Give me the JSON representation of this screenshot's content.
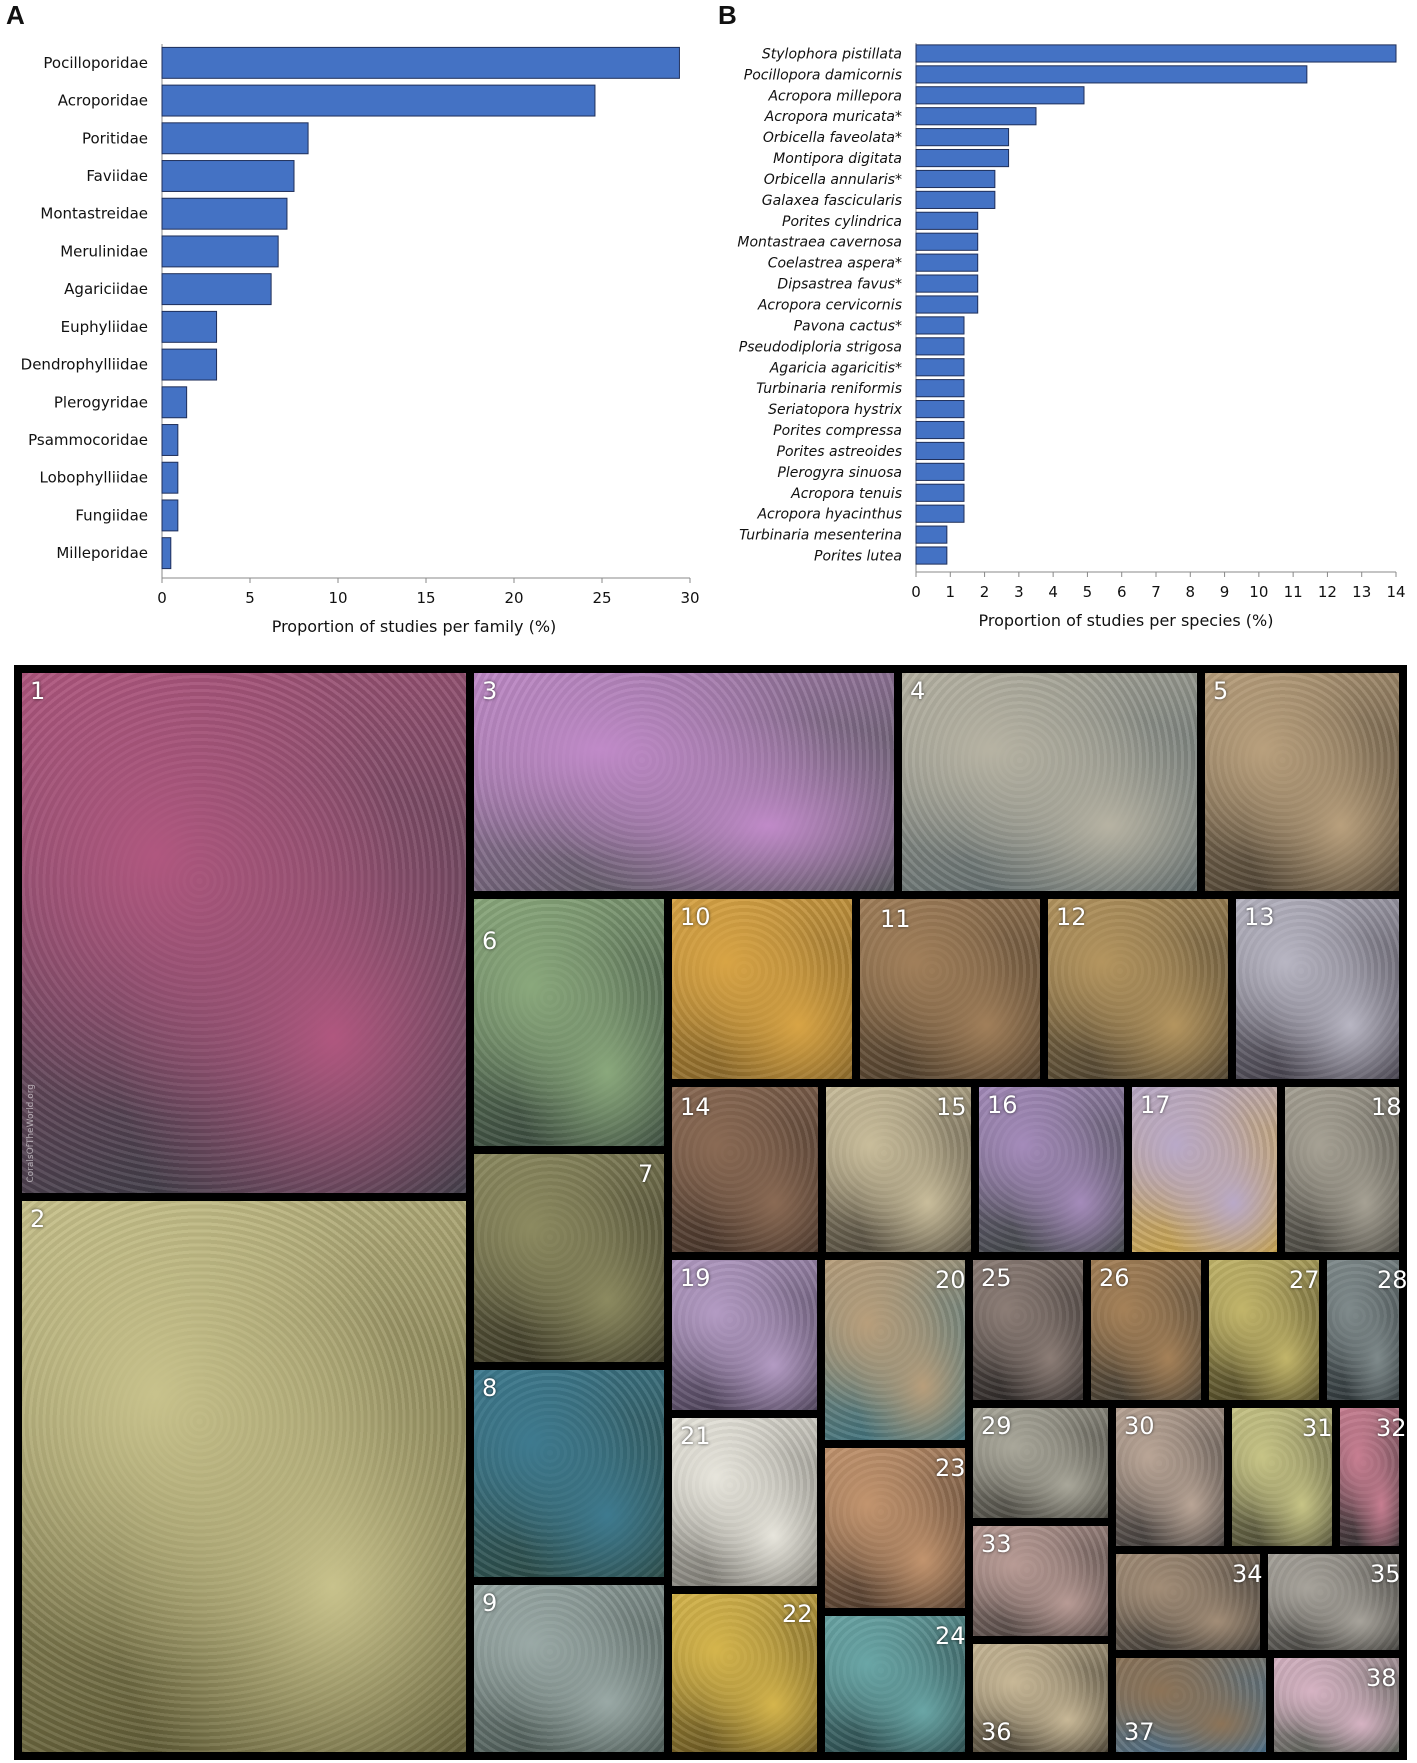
{
  "panels": {
    "a_letter": "A",
    "b_letter": "B"
  },
  "chart_data": [
    {
      "type": "bar",
      "orientation": "horizontal",
      "categories": [
        "Pocilloporidae",
        "Acroporidae",
        "Poritidae",
        "Faviidae",
        "Montastreidae",
        "Merulinidae",
        "Agariciidae",
        "Euphyliidae",
        "Dendrophylliidae",
        "Plerogyridae",
        "Psammocoridae",
        "Lobophylliidae",
        "Fungiidae",
        "Milleporidae"
      ],
      "values": [
        29.4,
        24.6,
        8.3,
        7.5,
        7.1,
        6.6,
        6.2,
        3.1,
        3.1,
        1.4,
        0.9,
        0.9,
        0.9,
        0.5
      ],
      "xlabel": "Proportion of studies per family (%)",
      "xlim": [
        0,
        30
      ],
      "xticks": [
        "0",
        "5",
        "10",
        "15",
        "20",
        "25",
        "30"
      ],
      "bar_color": "#4472C4"
    },
    {
      "type": "bar",
      "orientation": "horizontal",
      "categories": [
        "Stylophora pistillata",
        "Pocillopora damicornis",
        "Acropora millepora",
        "Acropora muricata*",
        "Orbicella faveolata*",
        "Montipora digitata",
        "Orbicella annularis*",
        "Galaxea fascicularis",
        "Porites cylindrica",
        "Montastraea cavernosa",
        "Coelastrea aspera*",
        "Dipsastrea favus*",
        "Acropora cervicornis",
        "Pavona cactus*",
        "Pseudodiploria strigosa",
        "Agaricia agaricitis*",
        "Turbinaria reniformis",
        "Seriatopora hystrix",
        "Porites compressa",
        "Porites astreoides",
        "Plerogyra sinuosa",
        "Acropora tenuis",
        "Acropora hyacinthus",
        "Turbinaria mesenterina",
        "Porites lutea"
      ],
      "values": [
        14.0,
        11.4,
        4.9,
        3.5,
        2.7,
        2.7,
        2.3,
        2.3,
        1.8,
        1.8,
        1.8,
        1.8,
        1.8,
        1.4,
        1.4,
        1.4,
        1.4,
        1.4,
        1.4,
        1.4,
        1.4,
        1.4,
        1.4,
        0.9,
        0.9
      ],
      "xlabel": "Proportion of studies per species (%)",
      "xlim": [
        0,
        14
      ],
      "xticks": [
        "0",
        "1",
        "2",
        "3",
        "4",
        "5",
        "6",
        "7",
        "8",
        "9",
        "10",
        "11",
        "12",
        "13",
        "14"
      ],
      "bar_color": "#4472C4"
    }
  ],
  "photos": {
    "credit": "CoralsOfTheWorld.org",
    "labels": [
      "1",
      "2",
      "3",
      "4",
      "5",
      "6",
      "7",
      "8",
      "9",
      "10",
      "11",
      "12",
      "13",
      "14",
      "15",
      "16",
      "17",
      "18",
      "19",
      "20",
      "21",
      "22",
      "23",
      "24",
      "25",
      "26",
      "27",
      "28",
      "29",
      "30",
      "31",
      "32",
      "33",
      "34",
      "35",
      "36",
      "37",
      "38"
    ]
  }
}
